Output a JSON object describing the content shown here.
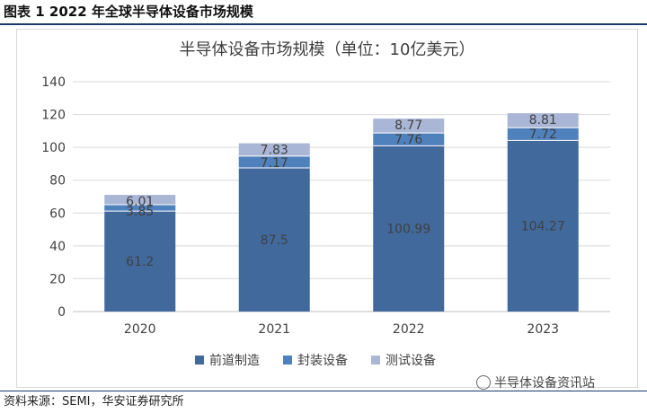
{
  "figure": {
    "title": "图表 1 2022 年全球半导体设备市场规模",
    "source": "资料来源：SEMI，华安证券研究所",
    "watermark": "半导体设备资讯站"
  },
  "colors": {
    "front_end": "#41699c",
    "packaging": "#4f81bd",
    "testing": "#aab6d6",
    "rule": "#1a3a6b"
  },
  "chart_data": {
    "type": "bar",
    "stacked": true,
    "title": "半导体设备市场规模（单位：10亿美元）",
    "categories": [
      "2020",
      "2021",
      "2022",
      "2023"
    ],
    "series": [
      {
        "name": "前道制造",
        "values": [
          61.2,
          87.5,
          100.99,
          104.27
        ],
        "labels": [
          "61.2",
          "87.5",
          "100.99",
          "104.27"
        ],
        "color": "#41699c"
      },
      {
        "name": "封装设备",
        "values": [
          3.85,
          7.17,
          7.76,
          7.72
        ],
        "labels": [
          "3.85",
          "7.17",
          "7.76",
          "7.72"
        ],
        "color": "#4f81bd"
      },
      {
        "name": "测试设备",
        "values": [
          6.01,
          7.83,
          8.77,
          8.81
        ],
        "labels": [
          "6.01",
          "7.83",
          "8.77",
          "8.81"
        ],
        "color": "#aab6d6"
      }
    ],
    "yticks": [
      "0",
      "20",
      "40",
      "60",
      "80",
      "100",
      "120",
      "140"
    ],
    "ylim": [
      0,
      140
    ],
    "grid": true,
    "legend": "bottom-center"
  }
}
